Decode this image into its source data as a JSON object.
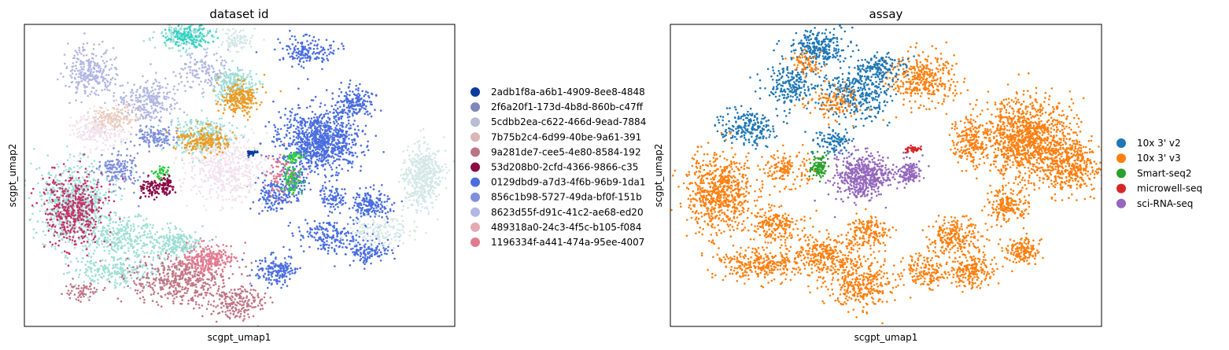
{
  "chart_data": [
    {
      "type": "scatter",
      "title": "dataset id",
      "xlabel": "scgpt_umap1",
      "ylabel": "scgpt_umap2",
      "grid": false,
      "legend_placement": "right",
      "series": [
        {
          "name": "2adb1f8a-a6b1-4909-8ee8-4848",
          "color": "#0b3b9e"
        },
        {
          "name": "2f6a20f1-173d-4b8d-860b-c47ff",
          "color": "#8087b9"
        },
        {
          "name": "5cdbb2ea-c622-466d-9ead-7884",
          "color": "#b8bdd3"
        },
        {
          "name": "7b75b2c4-6d99-40be-9a61-391",
          "color": "#dab7b7"
        },
        {
          "name": "9a281de7-cee5-4e80-8584-192",
          "color": "#b87586"
        },
        {
          "name": "53d208b0-2cfd-4366-9866-c35",
          "color": "#8b0a45"
        },
        {
          "name": "0129dbd9-a7d3-4f6b-96b9-1da1",
          "color": "#4a6ee0"
        },
        {
          "name": "856c1b98-5727-49da-bf0f-151b",
          "color": "#7f8fdc"
        },
        {
          "name": "8623d55f-d91c-41c2-ae68-ed20",
          "color": "#b2b7e3"
        },
        {
          "name": "489318a0-24c3-4f5c-b105-f084",
          "color": "#e3aab4"
        },
        {
          "name": "1196334f-a441-474a-95ee-4007",
          "color": "#e27a8f"
        }
      ]
    },
    {
      "type": "scatter",
      "title": "assay",
      "xlabel": "scgpt_umap1",
      "ylabel": "scgpt_umap2",
      "grid": false,
      "legend_placement": "right",
      "series": [
        {
          "name": "10x 3' v2",
          "color": "#1f77b4"
        },
        {
          "name": "10x 3' v3",
          "color": "#ff7f0e"
        },
        {
          "name": "Smart-seq2",
          "color": "#2ca02c"
        },
        {
          "name": "microwell-seq",
          "color": "#d62728"
        },
        {
          "name": "sci-RNA-seq",
          "color": "#9467bd"
        }
      ]
    }
  ]
}
